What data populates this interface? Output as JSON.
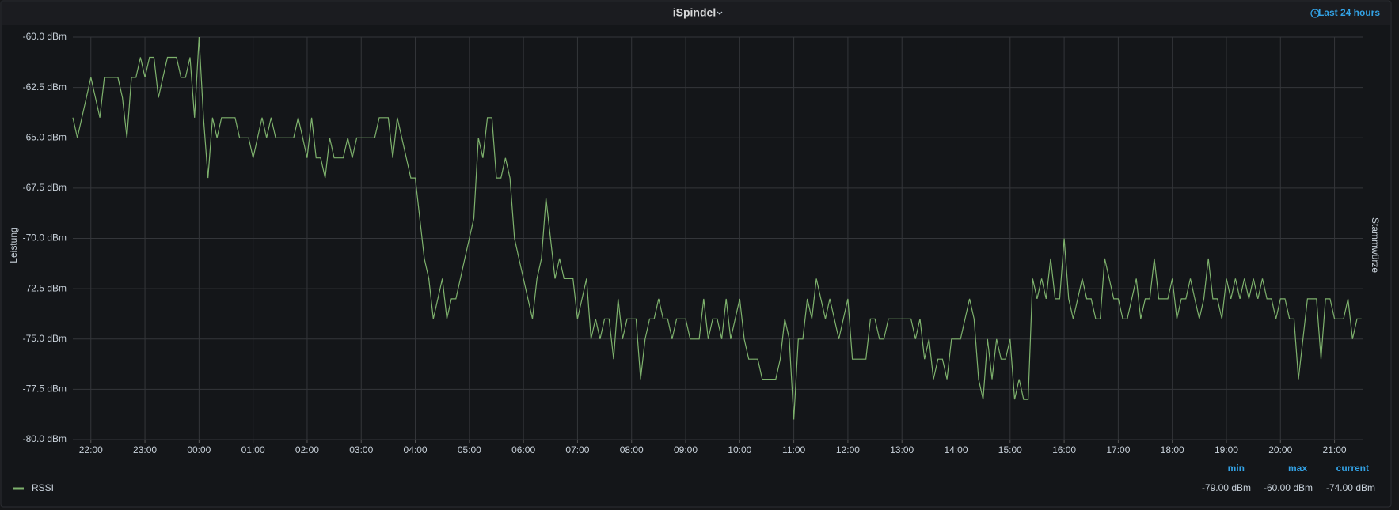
{
  "chart_data": {
    "type": "line",
    "title": "iSpindel",
    "time_range": "Last 24 hours",
    "ylabel": "Leistung",
    "y2label": "Stammwürze",
    "x": [
      "21:40",
      "21:45",
      "21:50",
      "21:55",
      "22:00",
      "22:05",
      "22:10",
      "22:15",
      "22:20",
      "22:25",
      "22:30",
      "22:35",
      "22:40",
      "22:45",
      "22:50",
      "22:55",
      "23:00",
      "23:05",
      "23:10",
      "23:15",
      "23:20",
      "23:25",
      "23:30",
      "23:35",
      "23:40",
      "23:45",
      "23:50",
      "23:55",
      "00:00",
      "00:05",
      "00:10",
      "00:15",
      "00:20",
      "00:25",
      "00:30",
      "00:35",
      "00:40",
      "00:45",
      "00:50",
      "00:55",
      "01:00",
      "01:05",
      "01:10",
      "01:15",
      "01:20",
      "01:25",
      "01:30",
      "01:35",
      "01:40",
      "01:45",
      "01:50",
      "01:55",
      "02:00",
      "02:05",
      "02:10",
      "02:15",
      "02:20",
      "02:25",
      "02:30",
      "02:35",
      "02:40",
      "02:45",
      "02:50",
      "02:55",
      "03:00",
      "03:05",
      "03:10",
      "03:15",
      "03:20",
      "03:25",
      "03:30",
      "03:35",
      "03:40",
      "03:45",
      "03:50",
      "03:55",
      "04:00",
      "04:05",
      "04:10",
      "04:15",
      "04:20",
      "04:25",
      "04:30",
      "04:35",
      "04:40",
      "04:45",
      "04:50",
      "04:55",
      "05:00",
      "05:05",
      "05:10",
      "05:15",
      "05:20",
      "05:25",
      "05:30",
      "05:35",
      "05:40",
      "05:45",
      "05:50",
      "05:55",
      "06:00",
      "06:05",
      "06:10",
      "06:15",
      "06:20",
      "06:25",
      "06:30",
      "06:35",
      "06:40",
      "06:45",
      "06:50",
      "06:55",
      "07:00",
      "07:05",
      "07:10",
      "07:15",
      "07:20",
      "07:25",
      "07:30",
      "07:35",
      "07:40",
      "07:45",
      "07:50",
      "07:55",
      "08:00",
      "08:05",
      "08:10",
      "08:15",
      "08:20",
      "08:25",
      "08:30",
      "08:35",
      "08:40",
      "08:45",
      "08:50",
      "08:55",
      "09:00",
      "09:05",
      "09:10",
      "09:15",
      "09:20",
      "09:25",
      "09:30",
      "09:35",
      "09:40",
      "09:45",
      "09:50",
      "09:55",
      "10:00",
      "10:05",
      "10:10",
      "10:15",
      "10:20",
      "10:25",
      "10:30",
      "10:35",
      "10:40",
      "10:45",
      "10:50",
      "10:55",
      "11:00",
      "11:05",
      "11:10",
      "11:15",
      "11:20",
      "11:25",
      "11:30",
      "11:35",
      "11:40",
      "11:45",
      "11:50",
      "11:55",
      "12:00",
      "12:05",
      "12:10",
      "12:15",
      "12:20",
      "12:25",
      "12:30",
      "12:35",
      "12:40",
      "12:45",
      "12:50",
      "12:55",
      "13:00",
      "13:05",
      "13:10",
      "13:15",
      "13:20",
      "13:25",
      "13:30",
      "13:35",
      "13:40",
      "13:45",
      "13:50",
      "13:55",
      "14:00",
      "14:05",
      "14:10",
      "14:15",
      "14:20",
      "14:25",
      "14:30",
      "14:35",
      "14:40",
      "14:45",
      "14:50",
      "14:55",
      "15:00",
      "15:05",
      "15:10",
      "15:15",
      "15:20",
      "15:25",
      "15:30",
      "15:35",
      "15:40",
      "15:45",
      "15:50",
      "15:55",
      "16:00",
      "16:05",
      "16:10",
      "16:15",
      "16:20",
      "16:25",
      "16:30",
      "16:35",
      "16:40",
      "16:45",
      "16:50",
      "16:55",
      "17:00",
      "17:05",
      "17:10",
      "17:15",
      "17:20",
      "17:25",
      "17:30",
      "17:35",
      "17:40",
      "17:45",
      "17:50",
      "17:55",
      "18:00",
      "18:05",
      "18:10",
      "18:15",
      "18:20",
      "18:25",
      "18:30",
      "18:35",
      "18:40",
      "18:45",
      "18:50",
      "18:55",
      "19:00",
      "19:05",
      "19:10",
      "19:15",
      "19:20",
      "19:25",
      "19:30",
      "19:35",
      "19:40",
      "19:45",
      "19:50",
      "19:55",
      "20:00",
      "20:05",
      "20:10",
      "20:15",
      "20:20",
      "20:25",
      "20:30",
      "20:35",
      "20:40",
      "20:45",
      "20:50",
      "20:55",
      "21:00",
      "21:05",
      "21:10",
      "21:15",
      "21:20",
      "21:25",
      "21:30"
    ],
    "series": [
      {
        "name": "RSSI",
        "color": "#7eb26d",
        "values": [
          -64,
          -65,
          -64,
          -63,
          -62,
          -63,
          -64,
          -62,
          -62,
          -62,
          -62,
          -63,
          -65,
          -62,
          -62,
          -61,
          -62,
          -61,
          -61,
          -63,
          -62,
          -61,
          -61,
          -61,
          -62,
          -62,
          -61,
          -64,
          -60,
          -64,
          -67,
          -64,
          -65,
          -64,
          -64,
          -64,
          -64,
          -65,
          -65,
          -65,
          -66,
          -65,
          -64,
          -65,
          -64,
          -65,
          -65,
          -65,
          -65,
          -65,
          -64,
          -65,
          -66,
          -64,
          -66,
          -66,
          -67,
          -65,
          -66,
          -66,
          -66,
          -65,
          -66,
          -65,
          -65,
          -65,
          -65,
          -65,
          -64,
          -64,
          -64,
          -66,
          -64,
          -65,
          -66,
          -67,
          -67,
          -69,
          -71,
          -72,
          -74,
          -73,
          -72,
          -74,
          -73,
          -73,
          -72,
          -71,
          -70,
          -69,
          -65,
          -66,
          -64,
          -64,
          -67,
          -67,
          -66,
          -67,
          -70,
          -71,
          -72,
          -73,
          -74,
          -72,
          -71,
          -68,
          -70,
          -72,
          -71,
          -72,
          -72,
          -72,
          -74,
          -73,
          -72,
          -75,
          -74,
          -75,
          -74,
          -74,
          -76,
          -73,
          -75,
          -74,
          -74,
          -74,
          -77,
          -75,
          -74,
          -74,
          -73,
          -74,
          -74,
          -75,
          -74,
          -74,
          -74,
          -75,
          -75,
          -75,
          -73,
          -75,
          -74,
          -74,
          -75,
          -73,
          -75,
          -74,
          -73,
          -75,
          -76,
          -76,
          -76,
          -77,
          -77,
          -77,
          -77,
          -76,
          -74,
          -75,
          -79,
          -75,
          -75,
          -73,
          -74,
          -72,
          -73,
          -74,
          -73,
          -74,
          -75,
          -74,
          -73,
          -76,
          -76,
          -76,
          -76,
          -74,
          -74,
          -75,
          -75,
          -74,
          -74,
          -74,
          -74,
          -74,
          -74,
          -75,
          -74,
          -76,
          -75,
          -77,
          -76,
          -76,
          -77,
          -75,
          -75,
          -75,
          -74,
          -73,
          -74,
          -77,
          -78,
          -75,
          -77,
          -75,
          -76,
          -76,
          -75,
          -78,
          -77,
          -78,
          -78,
          -72,
          -73,
          -72,
          -73,
          -71,
          -73,
          -73,
          -70,
          -73,
          -74,
          -73,
          -72,
          -73,
          -73,
          -74,
          -74,
          -71,
          -72,
          -73,
          -73,
          -74,
          -74,
          -73,
          -72,
          -74,
          -73,
          -73,
          -71,
          -73,
          -73,
          -73,
          -72,
          -74,
          -73,
          -73,
          -72,
          -73,
          -74,
          -73,
          -71,
          -73,
          -73,
          -74,
          -72,
          -73,
          -72,
          -73,
          -72,
          -73,
          -72,
          -73,
          -72,
          -73,
          -73,
          -74,
          -73,
          -73,
          -74,
          -74,
          -77,
          -75,
          -73,
          -73,
          -73,
          -76,
          -73,
          -73,
          -74,
          -74,
          -74,
          -73,
          -75,
          -74,
          -74
        ]
      }
    ],
    "xlim": [
      "21:40",
      "21:32"
    ],
    "xticks": [
      "22:00",
      "23:00",
      "00:00",
      "01:00",
      "02:00",
      "03:00",
      "04:00",
      "05:00",
      "06:00",
      "07:00",
      "08:00",
      "09:00",
      "10:00",
      "11:00",
      "12:00",
      "13:00",
      "14:00",
      "15:00",
      "16:00",
      "17:00",
      "18:00",
      "19:00",
      "20:00",
      "21:00"
    ],
    "ylim": [
      -80,
      -60
    ],
    "yticks": [
      {
        "value": -80,
        "label": "-80.0 dBm"
      },
      {
        "value": -77.5,
        "label": "-77.5 dBm"
      },
      {
        "value": -75,
        "label": "-75.0 dBm"
      },
      {
        "value": -72.5,
        "label": "-72.5 dBm"
      },
      {
        "value": -70,
        "label": "-70.0 dBm"
      },
      {
        "value": -67.5,
        "label": "-67.5 dBm"
      },
      {
        "value": -65,
        "label": "-65.0 dBm"
      },
      {
        "value": -62.5,
        "label": "-62.5 dBm"
      },
      {
        "value": -60,
        "label": "-60.0 dBm"
      }
    ],
    "grid": true,
    "legend": {
      "columns": [
        "min",
        "max",
        "current"
      ],
      "values": [
        -79,
        -60,
        -74
      ],
      "value_labels": [
        "-79.00 dBm",
        "-60.00 dBm",
        "-74.00 dBm"
      ]
    }
  }
}
